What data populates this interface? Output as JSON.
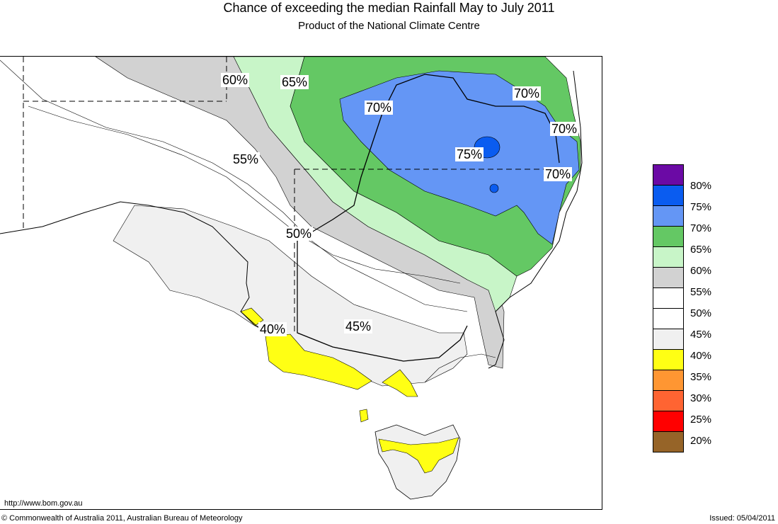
{
  "header": {
    "title": "Chance of exceeding the median Rainfall May to July 2011",
    "subtitle": "Product of the National Climate Centre"
  },
  "map_labels": [
    "60%",
    "65%",
    "70%",
    "70%",
    "70%",
    "75%",
    "70%",
    "55%",
    "50%",
    "45%",
    "40%"
  ],
  "legend": {
    "items": [
      {
        "label": "",
        "color": "#6b0aa5"
      },
      {
        "label": "80%",
        "color": "#0a5cf0"
      },
      {
        "label": "75%",
        "color": "#6496f5"
      },
      {
        "label": "70%",
        "color": "#64c864"
      },
      {
        "label": "65%",
        "color": "#c8f5c8"
      },
      {
        "label": "60%",
        "color": "#d2d2d2"
      },
      {
        "label": "55%",
        "color": "#ffffff"
      },
      {
        "label": "50%",
        "color": "#ffffff"
      },
      {
        "label": "45%",
        "color": "#f0f0f0"
      },
      {
        "label": "40%",
        "color": "#ffff14"
      },
      {
        "label": "35%",
        "color": "#ff9632"
      },
      {
        "label": "30%",
        "color": "#ff6432"
      },
      {
        "label": "25%",
        "color": "#ff0000"
      },
      {
        "label": "20%",
        "color": "#966428"
      }
    ]
  },
  "footer": {
    "url": "http://www.bom.gov.au",
    "copyright": "© Commonwealth of Australia 2011, Australian Bureau of Meteorology",
    "issued": "Issued: 05/04/2011"
  }
}
